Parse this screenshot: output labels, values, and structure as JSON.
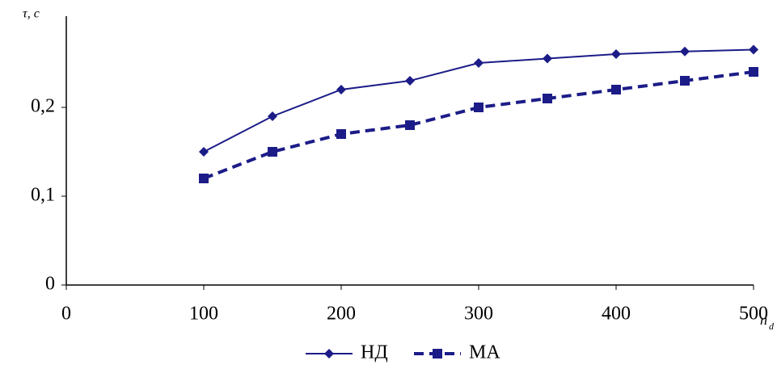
{
  "chart_data": {
    "type": "line",
    "y_label": "τ, c",
    "x_label": "n",
    "x_label_subscript": "d",
    "x": [
      100,
      150,
      200,
      250,
      300,
      350,
      400,
      450,
      500
    ],
    "series": [
      {
        "name": "НД",
        "color": "#1c1c88",
        "marker": "diamond",
        "dash": "solid",
        "values": [
          0.15,
          0.19,
          0.22,
          0.23,
          0.25,
          0.255,
          0.26,
          0.263,
          0.265
        ]
      },
      {
        "name": "МА",
        "color": "#1c1c88",
        "marker": "square",
        "dash": "dashed",
        "values": [
          0.12,
          0.15,
          0.17,
          0.18,
          0.2,
          0.21,
          0.22,
          0.23,
          0.24
        ]
      }
    ],
    "xlim": [
      0,
      500
    ],
    "xticks": [
      0,
      100,
      200,
      300,
      400,
      500
    ],
    "ylim": [
      0,
      0.3
    ],
    "yticks": [
      0,
      {
        "value": 0.1,
        "label": "0,1"
      },
      {
        "value": 0.2,
        "label": "0,2"
      }
    ],
    "grid": false,
    "legend": "bottom"
  }
}
